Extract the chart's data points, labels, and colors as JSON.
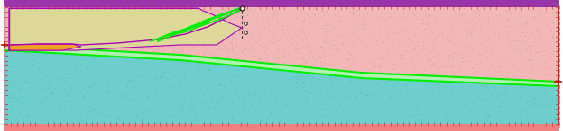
{
  "fig_width": 6.24,
  "fig_height": 1.46,
  "dpi": 100,
  "bg_color": "#ffffff",
  "border_color_dash": "#f08080",
  "pink_fill": "#f2b8b8",
  "pink_dots_color": "#b89898",
  "teal_fill": "#6ecece",
  "teal_dots_color": "#50aaaa",
  "light_green_fill": "#b0f0b0",
  "green_line_color": "#00ee00",
  "purple_outline": "#aa00bb",
  "dam_yellow_fill": "#ddd898",
  "dam_orange_fill": "#f0a020",
  "dashed_line_color": "#444444",
  "marker_color": "#111111",
  "top_purple_bar_color": "#9933aa",
  "bottom_pink_bar_color": "#f08080",
  "border_tick_color": "#cc2222",
  "right_tick_color": "#cc4444"
}
